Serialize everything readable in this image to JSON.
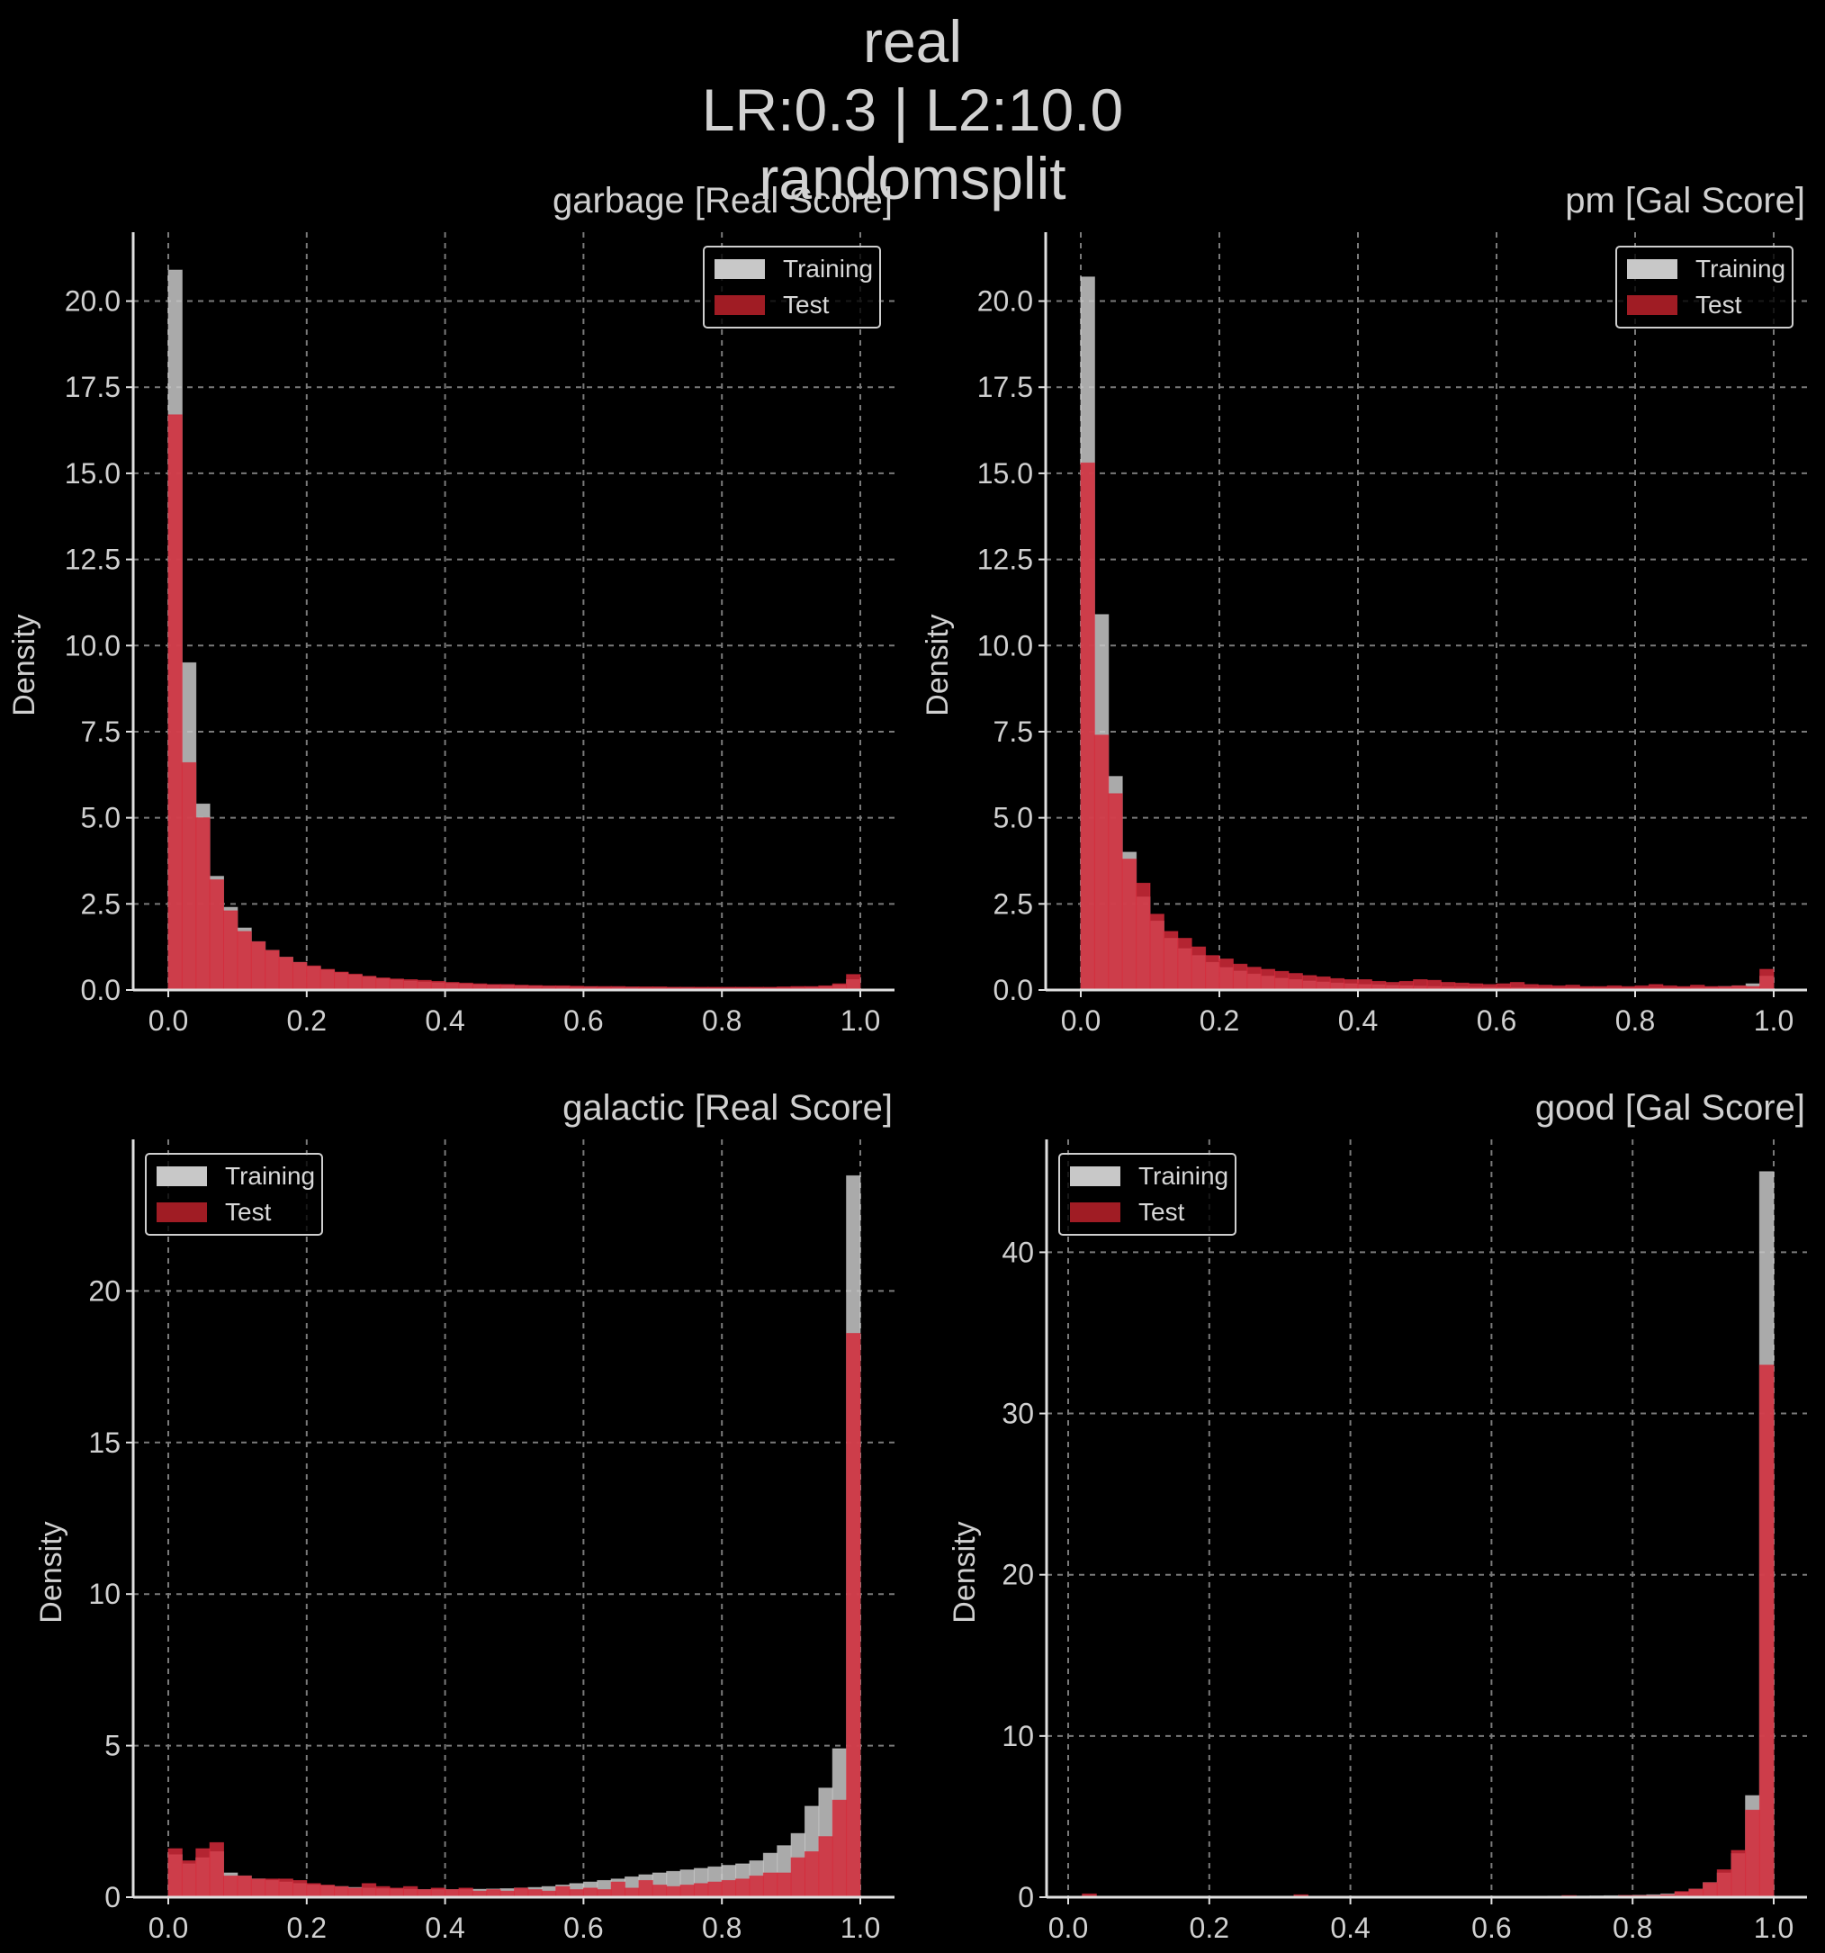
{
  "figure": {
    "title_lines": [
      "real",
      "LR:0.3 | L2:10.0",
      "randomsplit"
    ]
  },
  "colors": {
    "background": "#000000",
    "training": "#c8c8c8",
    "test": "#d42a3a",
    "test_legend": "#a01c24",
    "grid": "#7a7a7a",
    "axis": "#e0e0e0"
  },
  "chart_data": [
    {
      "type": "bar",
      "title": "garbage [Real Score]",
      "ylabel": "Density",
      "xlim": [
        0,
        1
      ],
      "ylim": [
        0,
        22
      ],
      "xticks": [
        "0.0",
        "0.2",
        "0.4",
        "0.6",
        "0.8",
        "1.0"
      ],
      "yticks": [
        "0.0",
        "2.5",
        "5.0",
        "7.5",
        "10.0",
        "12.5",
        "15.0",
        "17.5",
        "20.0"
      ],
      "ytick_values": [
        0,
        2.5,
        5,
        7.5,
        10,
        12.5,
        15,
        17.5,
        20
      ],
      "grid": true,
      "legend": "upper right",
      "bins": 50,
      "series": [
        {
          "name": "Training",
          "values": [
            20.9,
            9.5,
            5.4,
            3.3,
            2.4,
            1.8,
            1.4,
            1.15,
            0.95,
            0.8,
            0.68,
            0.58,
            0.5,
            0.44,
            0.38,
            0.33,
            0.29,
            0.26,
            0.23,
            0.21,
            0.19,
            0.17,
            0.15,
            0.14,
            0.13,
            0.12,
            0.11,
            0.1,
            0.1,
            0.09,
            0.09,
            0.08,
            0.08,
            0.08,
            0.07,
            0.07,
            0.07,
            0.07,
            0.06,
            0.06,
            0.06,
            0.06,
            0.06,
            0.06,
            0.06,
            0.07,
            0.08,
            0.1,
            0.14,
            0.3
          ]
        },
        {
          "name": "Test",
          "values": [
            16.7,
            6.6,
            5.0,
            3.2,
            2.3,
            1.7,
            1.4,
            1.15,
            0.95,
            0.8,
            0.7,
            0.6,
            0.52,
            0.46,
            0.4,
            0.35,
            0.32,
            0.3,
            0.28,
            0.25,
            0.22,
            0.2,
            0.18,
            0.16,
            0.16,
            0.14,
            0.13,
            0.12,
            0.12,
            0.11,
            0.1,
            0.1,
            0.1,
            0.09,
            0.09,
            0.09,
            0.08,
            0.08,
            0.08,
            0.08,
            0.08,
            0.08,
            0.08,
            0.08,
            0.09,
            0.1,
            0.1,
            0.12,
            0.18,
            0.45
          ]
        }
      ]
    },
    {
      "type": "bar",
      "title": "pm [Gal Score]",
      "ylabel": "Density",
      "xlim": [
        0,
        1
      ],
      "ylim": [
        0,
        22
      ],
      "xticks": [
        "0.0",
        "0.2",
        "0.4",
        "0.6",
        "0.8",
        "1.0"
      ],
      "yticks": [
        "0.0",
        "2.5",
        "5.0",
        "7.5",
        "10.0",
        "12.5",
        "15.0",
        "17.5",
        "20.0"
      ],
      "ytick_values": [
        0,
        2.5,
        5,
        7.5,
        10,
        12.5,
        15,
        17.5,
        20
      ],
      "grid": true,
      "legend": "upper right",
      "bins": 50,
      "series": [
        {
          "name": "Training",
          "values": [
            20.7,
            10.9,
            6.2,
            4.0,
            2.7,
            2.0,
            1.5,
            1.2,
            1.0,
            0.8,
            0.65,
            0.55,
            0.46,
            0.4,
            0.34,
            0.3,
            0.26,
            0.23,
            0.2,
            0.18,
            0.16,
            0.15,
            0.13,
            0.12,
            0.11,
            0.1,
            0.09,
            0.09,
            0.08,
            0.08,
            0.07,
            0.07,
            0.07,
            0.06,
            0.06,
            0.06,
            0.06,
            0.06,
            0.06,
            0.06,
            0.06,
            0.06,
            0.06,
            0.07,
            0.07,
            0.08,
            0.1,
            0.12,
            0.18,
            0.4
          ]
        },
        {
          "name": "Test",
          "values": [
            15.3,
            7.4,
            5.7,
            3.8,
            3.1,
            2.2,
            1.7,
            1.5,
            1.25,
            1.0,
            0.9,
            0.75,
            0.66,
            0.6,
            0.54,
            0.48,
            0.42,
            0.38,
            0.33,
            0.3,
            0.3,
            0.25,
            0.22,
            0.25,
            0.3,
            0.28,
            0.22,
            0.2,
            0.18,
            0.16,
            0.18,
            0.22,
            0.16,
            0.14,
            0.12,
            0.14,
            0.1,
            0.1,
            0.12,
            0.1,
            0.12,
            0.16,
            0.12,
            0.1,
            0.14,
            0.1,
            0.1,
            0.12,
            0.1,
            0.6
          ]
        }
      ]
    },
    {
      "type": "bar",
      "title": "galactic [Real Score]",
      "ylabel": "Density",
      "xlim": [
        0,
        1
      ],
      "ylim": [
        0,
        25
      ],
      "xticks": [
        "0.0",
        "0.2",
        "0.4",
        "0.6",
        "0.8",
        "1.0"
      ],
      "yticks": [
        "0",
        "5",
        "10",
        "15",
        "20"
      ],
      "ytick_values": [
        0,
        5,
        10,
        15,
        20
      ],
      "grid": true,
      "legend": "upper left",
      "bins": 50,
      "series": [
        {
          "name": "Training",
          "values": [
            1.4,
            1.1,
            1.3,
            1.5,
            0.8,
            0.7,
            0.6,
            0.55,
            0.5,
            0.45,
            0.4,
            0.38,
            0.35,
            0.32,
            0.3,
            0.28,
            0.27,
            0.26,
            0.25,
            0.25,
            0.25,
            0.25,
            0.26,
            0.27,
            0.28,
            0.3,
            0.32,
            0.35,
            0.4,
            0.45,
            0.5,
            0.55,
            0.6,
            0.67,
            0.74,
            0.8,
            0.85,
            0.9,
            0.95,
            1.0,
            1.05,
            1.1,
            1.2,
            1.45,
            1.7,
            2.1,
            3.0,
            3.6,
            4.9,
            23.8
          ]
        },
        {
          "name": "Test",
          "values": [
            1.6,
            1.2,
            1.6,
            1.8,
            0.7,
            0.7,
            0.6,
            0.6,
            0.6,
            0.55,
            0.45,
            0.4,
            0.35,
            0.3,
            0.45,
            0.35,
            0.3,
            0.35,
            0.25,
            0.3,
            0.25,
            0.3,
            0.2,
            0.25,
            0.2,
            0.3,
            0.25,
            0.2,
            0.35,
            0.25,
            0.3,
            0.25,
            0.5,
            0.3,
            0.55,
            0.4,
            0.35,
            0.4,
            0.45,
            0.5,
            0.55,
            0.6,
            0.7,
            0.8,
            0.8,
            1.3,
            1.5,
            2.0,
            3.2,
            18.6
          ]
        }
      ]
    },
    {
      "type": "bar",
      "title": "good [Gal Score]",
      "ylabel": "Density",
      "xlim": [
        0,
        1
      ],
      "ylim": [
        0,
        47
      ],
      "xticks": [
        "0.0",
        "0.2",
        "0.4",
        "0.6",
        "0.8",
        "1.0"
      ],
      "yticks": [
        "0",
        "10",
        "20",
        "30",
        "40"
      ],
      "ytick_values": [
        0,
        10,
        20,
        30,
        40
      ],
      "grid": true,
      "legend": "upper left",
      "bins": 50,
      "series": [
        {
          "name": "Training",
          "values": [
            0.02,
            0.03,
            0.03,
            0.03,
            0.03,
            0.03,
            0.03,
            0.03,
            0.03,
            0.03,
            0.03,
            0.03,
            0.03,
            0.03,
            0.03,
            0.03,
            0.03,
            0.03,
            0.03,
            0.03,
            0.03,
            0.03,
            0.03,
            0.04,
            0.04,
            0.04,
            0.04,
            0.04,
            0.04,
            0.04,
            0.05,
            0.05,
            0.05,
            0.05,
            0.06,
            0.06,
            0.07,
            0.08,
            0.09,
            0.1,
            0.12,
            0.15,
            0.2,
            0.3,
            0.5,
            0.9,
            1.5,
            2.7,
            6.3,
            45.0
          ]
        },
        {
          "name": "Test",
          "values": [
            0.05,
            0.2,
            0.05,
            0.05,
            0.05,
            0.05,
            0.05,
            0.05,
            0.05,
            0.05,
            0.05,
            0.05,
            0.05,
            0.05,
            0.05,
            0.05,
            0.15,
            0.05,
            0.05,
            0.05,
            0.05,
            0.05,
            0.05,
            0.05,
            0.05,
            0.05,
            0.05,
            0.05,
            0.05,
            0.05,
            0.05,
            0.05,
            0.05,
            0.05,
            0.05,
            0.1,
            0.05,
            0.05,
            0.05,
            0.1,
            0.1,
            0.1,
            0.15,
            0.35,
            0.5,
            0.9,
            1.7,
            2.9,
            5.4,
            33.0
          ]
        }
      ]
    }
  ]
}
